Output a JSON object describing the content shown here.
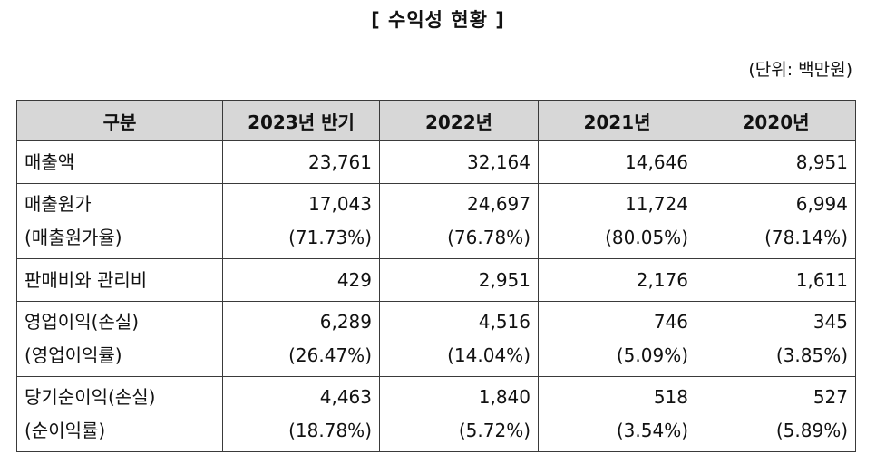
{
  "title": "[ 수익성 현황 ]",
  "unit": "(단위: 백만원)",
  "headers": [
    "구분",
    "2023년 반기",
    "2022년",
    "2021년",
    "2020년"
  ],
  "rows": [
    {
      "label": [
        "매출액"
      ],
      "values": [
        [
          "23,761"
        ],
        [
          "32,164"
        ],
        [
          "14,646"
        ],
        [
          "8,951"
        ]
      ]
    },
    {
      "label": [
        "매출원가",
        "(매출원가율)"
      ],
      "values": [
        [
          "17,043",
          "(71.73%)"
        ],
        [
          "24,697",
          "(76.78%)"
        ],
        [
          "11,724",
          "(80.05%)"
        ],
        [
          "6,994",
          "(78.14%)"
        ]
      ]
    },
    {
      "label": [
        "판매비와 관리비"
      ],
      "values": [
        [
          "429"
        ],
        [
          "2,951"
        ],
        [
          "2,176"
        ],
        [
          "1,611"
        ]
      ]
    },
    {
      "label": [
        "영업이익(손실)",
        "(영업이익률)"
      ],
      "values": [
        [
          "6,289",
          "(26.47%)"
        ],
        [
          "4,516",
          "(14.04%)"
        ],
        [
          "746",
          "(5.09%)"
        ],
        [
          "345",
          "(3.85%)"
        ]
      ]
    },
    {
      "label": [
        "당기순이익(손실)",
        "(순이익률)"
      ],
      "values": [
        [
          "4,463",
          "(18.78%)"
        ],
        [
          "1,840",
          "(5.72%)"
        ],
        [
          "518",
          "(3.54%)"
        ],
        [
          "527",
          "(5.89%)"
        ]
      ]
    }
  ]
}
